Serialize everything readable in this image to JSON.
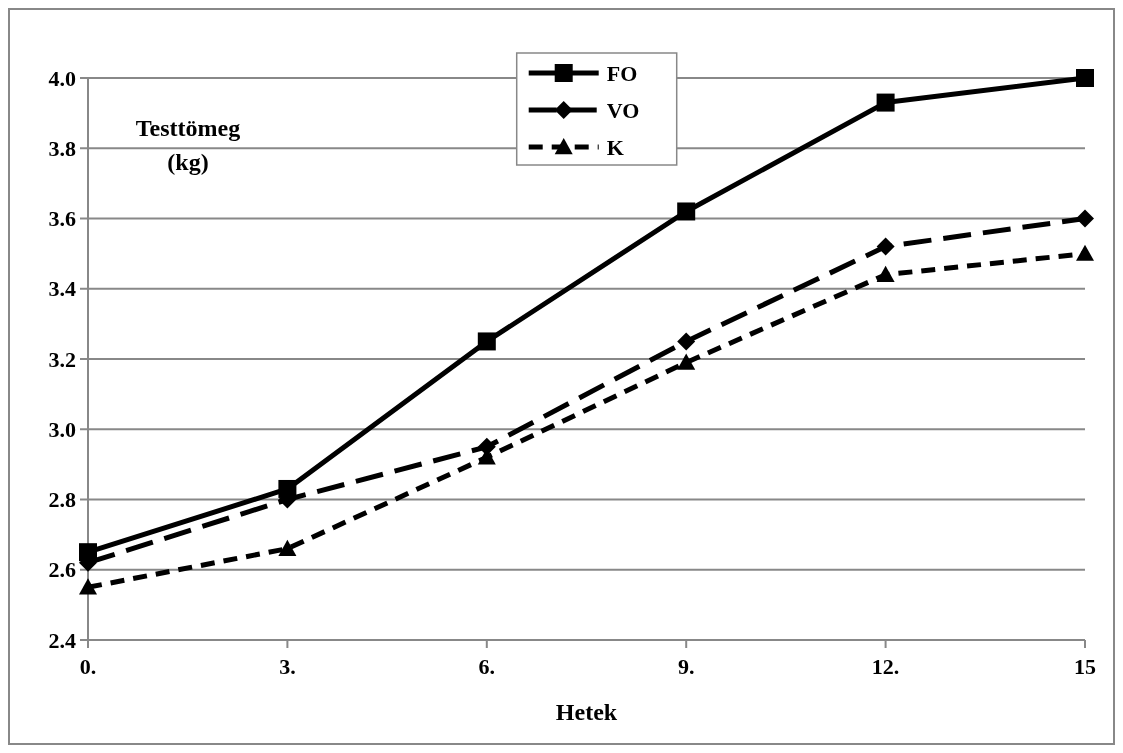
{
  "chart_data": {
    "type": "line",
    "xlabel": "Hetek",
    "ylabel": "Testtömeg (kg)",
    "categories": [
      "0.",
      "3.",
      "6.",
      "9.",
      "12.",
      "15"
    ],
    "ylim": [
      2.4,
      4.0
    ],
    "yticks": [
      {
        "value": 2.4,
        "label": "2.4"
      },
      {
        "value": 2.6,
        "label": "2.6"
      },
      {
        "value": 2.8,
        "label": "2.8"
      },
      {
        "value": 3.0,
        "label": "3.0"
      },
      {
        "value": 3.2,
        "label": "3.2"
      },
      {
        "value": 3.4,
        "label": "3.4"
      },
      {
        "value": 3.6,
        "label": "3.6"
      },
      {
        "value": 3.8,
        "label": "3.8"
      },
      {
        "value": 4.0,
        "label": "4.0"
      }
    ],
    "grid": "y",
    "legend": "top",
    "series": [
      {
        "name": "FO",
        "color": "#000000",
        "marker": "square",
        "line_style": "solid",
        "values": [
          2.65,
          2.83,
          3.25,
          3.62,
          3.93,
          4.0
        ]
      },
      {
        "name": "VO",
        "color": "#000000",
        "marker": "diamond",
        "line_style": "dashed",
        "values": [
          2.62,
          2.8,
          2.95,
          3.25,
          3.52,
          3.6
        ]
      },
      {
        "name": "K",
        "color": "#000000",
        "marker": "triangle",
        "line_style": "dotted",
        "values": [
          2.55,
          2.66,
          2.92,
          3.19,
          3.44,
          3.5
        ]
      }
    ]
  }
}
